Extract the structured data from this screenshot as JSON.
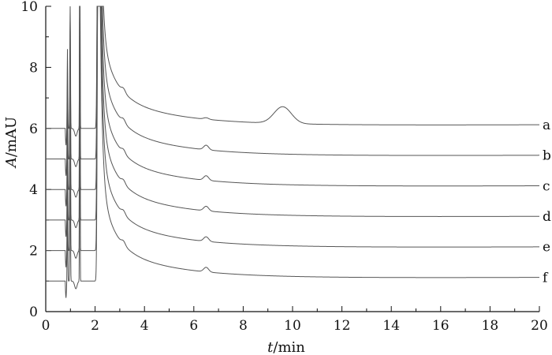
{
  "chart_data": {
    "type": "line",
    "xlabel": {
      "italic": "t",
      "unit": "/min"
    },
    "ylabel": {
      "italic": "A",
      "unit": "/mAU"
    },
    "xlim": [
      0,
      20
    ],
    "ylim": [
      0,
      10
    ],
    "x_ticks": [
      0,
      2,
      4,
      6,
      8,
      10,
      12,
      14,
      16,
      18,
      20
    ],
    "y_ticks": [
      0,
      2,
      4,
      6,
      8,
      10
    ],
    "grid": false,
    "line_color": "#555555",
    "series": [
      {
        "name": "a",
        "baseline": 6.0,
        "end_value": 6.1,
        "features": {
          "peak_6_5": 0.05,
          "peak_9_6": 0.55
        }
      },
      {
        "name": "b",
        "baseline": 5.0,
        "end_value": 5.1,
        "features": {
          "peak_6_5": 0.15
        }
      },
      {
        "name": "c",
        "baseline": 4.0,
        "end_value": 4.1,
        "features": {
          "peak_6_5": 0.15
        }
      },
      {
        "name": "d",
        "baseline": 3.0,
        "end_value": 3.1,
        "features": {
          "peak_6_5": 0.15
        }
      },
      {
        "name": "e",
        "baseline": 2.0,
        "end_value": 2.1,
        "features": {
          "peak_6_5": 0.15
        }
      },
      {
        "name": "f",
        "baseline": 1.0,
        "end_value": 1.1,
        "features": {
          "peak_6_5": 0.15
        }
      }
    ]
  }
}
